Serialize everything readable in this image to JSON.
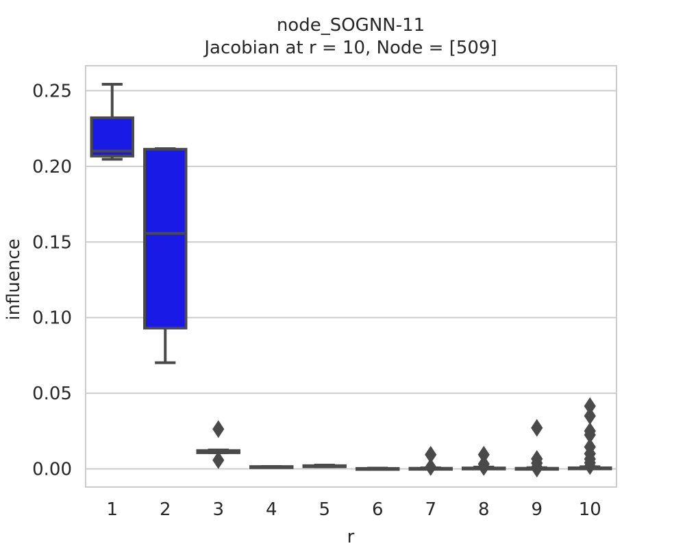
{
  "chart_data": {
    "type": "box",
    "title": "node_SOGNN-11",
    "subtitle": "Jacobian at r = 10, Node = [509]",
    "xlabel": "r",
    "ylabel": "influence",
    "categories": [
      "1",
      "2",
      "3",
      "4",
      "5",
      "6",
      "7",
      "8",
      "9",
      "10"
    ],
    "y_ticks": [
      "0.00",
      "0.05",
      "0.10",
      "0.15",
      "0.20",
      "0.25"
    ],
    "ylim": [
      -0.012,
      0.2665
    ],
    "grid": true,
    "box_color": "#1a1ae6",
    "line_color": "#4a4a4a",
    "boxes": [
      {
        "category": "1",
        "whisker_low": 0.2047,
        "q1": 0.2068,
        "median": 0.2101,
        "q3": 0.2321,
        "whisker_high": 0.2543,
        "outliers": []
      },
      {
        "category": "2",
        "whisker_low": 0.0702,
        "q1": 0.0931,
        "median": 0.1557,
        "q3": 0.2113,
        "whisker_high": 0.2117,
        "outliers": []
      },
      {
        "category": "3",
        "whisker_low": 0.0107,
        "q1": 0.0107,
        "median": 0.0113,
        "q3": 0.0121,
        "whisker_high": 0.0125,
        "outliers": [
          0.0263,
          0.0058
        ]
      },
      {
        "category": "4",
        "whisker_low": 0.0011,
        "q1": 0.0013,
        "median": 0.0014,
        "q3": 0.0015,
        "whisker_high": 0.0016,
        "outliers": []
      },
      {
        "category": "5",
        "whisker_low": 0.0015,
        "q1": 0.0016,
        "median": 0.0018,
        "q3": 0.0021,
        "whisker_high": 0.0025,
        "outliers": []
      },
      {
        "category": "6",
        "whisker_low": 0.0,
        "q1": 0.0001,
        "median": 0.0002,
        "q3": 0.0003,
        "whisker_high": 0.0005,
        "outliers": []
      },
      {
        "category": "7",
        "whisker_low": 0.0,
        "q1": 0.0001,
        "median": 0.0002,
        "q3": 0.0004,
        "whisker_high": 0.0007,
        "outliers": [
          0.0094,
          0.0012
        ]
      },
      {
        "category": "8",
        "whisker_low": 0.0,
        "q1": 0.0001,
        "median": 0.0002,
        "q3": 0.0006,
        "whisker_high": 0.0012,
        "outliers": [
          0.0094,
          0.0032,
          0.0012
        ]
      },
      {
        "category": "9",
        "whisker_low": 0.0,
        "q1": 0.0001,
        "median": 0.0002,
        "q3": 0.0004,
        "whisker_high": 0.0008,
        "outliers": [
          0.0271,
          0.0066,
          0.0038,
          0.0012,
          0.0002
        ]
      },
      {
        "category": "10",
        "whisker_low": 0.0,
        "q1": 0.0001,
        "median": 0.0003,
        "q3": 0.0007,
        "whisker_high": 0.0014,
        "outliers": [
          0.0415,
          0.035,
          0.025,
          0.0225,
          0.0145,
          0.01,
          0.0065,
          0.004,
          0.0018
        ]
      }
    ]
  }
}
